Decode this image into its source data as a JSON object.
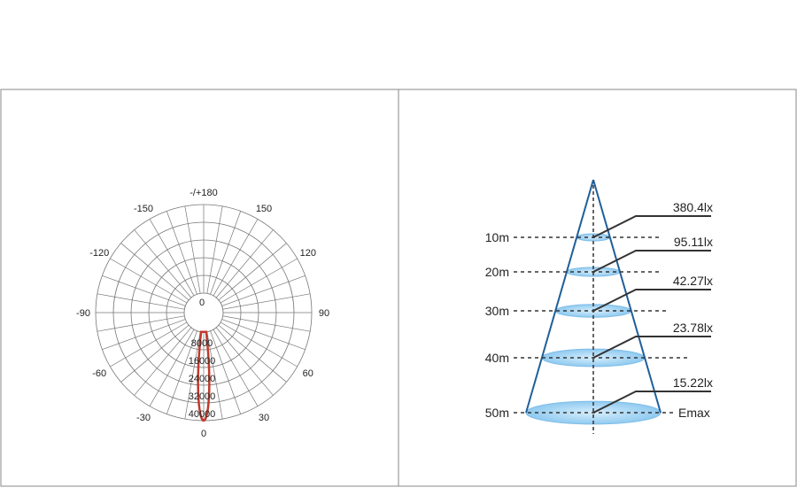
{
  "polar_diagram": {
    "angle_labels": [
      {
        "angle": 180,
        "text": "-/+180"
      },
      {
        "angle": -150,
        "text": "-150"
      },
      {
        "angle": 150,
        "text": "150"
      },
      {
        "angle": -120,
        "text": "-120"
      },
      {
        "angle": 120,
        "text": "120"
      },
      {
        "angle": -90,
        "text": "-90"
      },
      {
        "angle": 90,
        "text": "90"
      },
      {
        "angle": -60,
        "text": "-60"
      },
      {
        "angle": 60,
        "text": "60"
      },
      {
        "angle": -30,
        "text": "-30"
      },
      {
        "angle": 30,
        "text": "30"
      },
      {
        "angle": 0,
        "text": "0"
      }
    ],
    "ring_values": [
      0,
      8000,
      16000,
      24000,
      32000,
      40000
    ],
    "ring_labels": [
      "0",
      "8000",
      "16000",
      "24000",
      "32000",
      "40000"
    ],
    "curve_color": "#c0392b",
    "beam_max": 40000,
    "beam_half_angle_deg": 7.5
  },
  "cone_diagram": {
    "levels": [
      {
        "distance": "10m",
        "lux": "380.4lx"
      },
      {
        "distance": "20m",
        "lux": "95.11lx"
      },
      {
        "distance": "30m",
        "lux": "42.27lx"
      },
      {
        "distance": "40m",
        "lux": "23.78lx"
      },
      {
        "distance": "50m",
        "lux": "15.22lx"
      }
    ],
    "emax_label": "Emax",
    "cone_color": "#1f5f9a",
    "disc_color": "#a9d7f5"
  }
}
